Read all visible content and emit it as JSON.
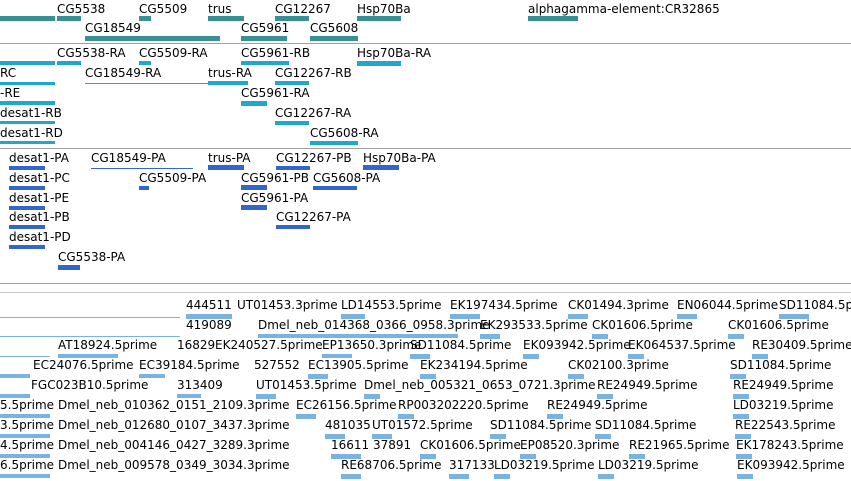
{
  "colors": {
    "gene": "#3a8f94",
    "transcript": "#1fa8c9",
    "protein": "#3366cc",
    "est": "#7ab3e0",
    "separator": "#a0a0a0"
  },
  "gene_track": {
    "labels": [
      "CG5538",
      "CG5509",
      "trus",
      "CG12267",
      "Hsp70Ba",
      "alphagamma-element:CR32865",
      "CG18549",
      "CG5961",
      "CG5608"
    ]
  },
  "transcript_track": {
    "labels": [
      "CG5538-RA",
      "CG5509-RA",
      "CG5961-RB",
      "Hsp70Ba-RA",
      "RC",
      "CG18549-RA",
      "trus-RA",
      "CG12267-RB",
      "-RE",
      "CG5961-RA",
      "desat1-RB",
      "CG12267-RA",
      "desat1-RD",
      "CG5608-RA"
    ]
  },
  "protein_track": {
    "labels": [
      "desat1-PA",
      "CG18549-PA",
      "trus-PA",
      "CG12267-PB",
      "Hsp70Ba-PA",
      "CG5509-PA",
      "desat1-PC",
      "CG5961-PB",
      "CG5608-PA",
      "desat1-PE",
      "CG5961-PA",
      "desat1-PB",
      "CG12267-PA",
      "desat1-PD",
      "CG5538-PA"
    ]
  },
  "est_track": {
    "labels": [
      "444511",
      "UT01453.3prime",
      "LD14553.5prime",
      "EK197434.5prime",
      "CK01494.3prime",
      "EN06044.5prime",
      "SD11084.5p",
      "419089",
      "Dmel_neb_014368_0366_0958.3prime",
      "EK293533.5prime",
      "CK01606.5prime",
      "CK01606.5prime",
      "AT18924.5prime",
      "16829",
      "EK240527.5prime",
      "EP13650.3prime",
      "SD11084.5prime",
      "EK093942.5prime",
      "EK064537.5prime",
      "RE30409.5prime",
      "EC24076.5prime",
      "EC39184.5prime",
      "527552",
      "EC13905.5prime",
      "EK234194.5prime",
      "CK02100.3prime",
      "SD11084.5prime",
      "FGC023B10.5prime",
      "313409",
      "UT01453.5prime",
      "Dmel_neb_005321_0653_0721.3prime",
      "RE24949.5prime",
      "RE24949.5prime",
      "5.5prime",
      "Dmel_neb_010362_0151_2109.3prime",
      "EC26156.5prime",
      "RP003202220.5prime",
      "RE24949.5prime",
      "LD03219.5prime",
      "3.5prime",
      "Dmel_neb_012680_0107_3437.3prime",
      "481035",
      "UT01572.5prime",
      "SD11084.5prime",
      "SD11084.5prime",
      "RE22543.5prime",
      "4.5prime",
      "Dmel_neb_004146_0427_3289.3prime",
      "16611",
      "37891",
      "CK01606.5prime",
      "EP08520.3prime",
      "RE21965.5prime",
      "EK178243.5prime",
      "6.5prime",
      "Dmel_neb_009578_0349_3034.3prime",
      "RE68706.5prime",
      "317133",
      "LD03219.5prime",
      "LD03219.5prime",
      "EK093942.5prime"
    ]
  }
}
